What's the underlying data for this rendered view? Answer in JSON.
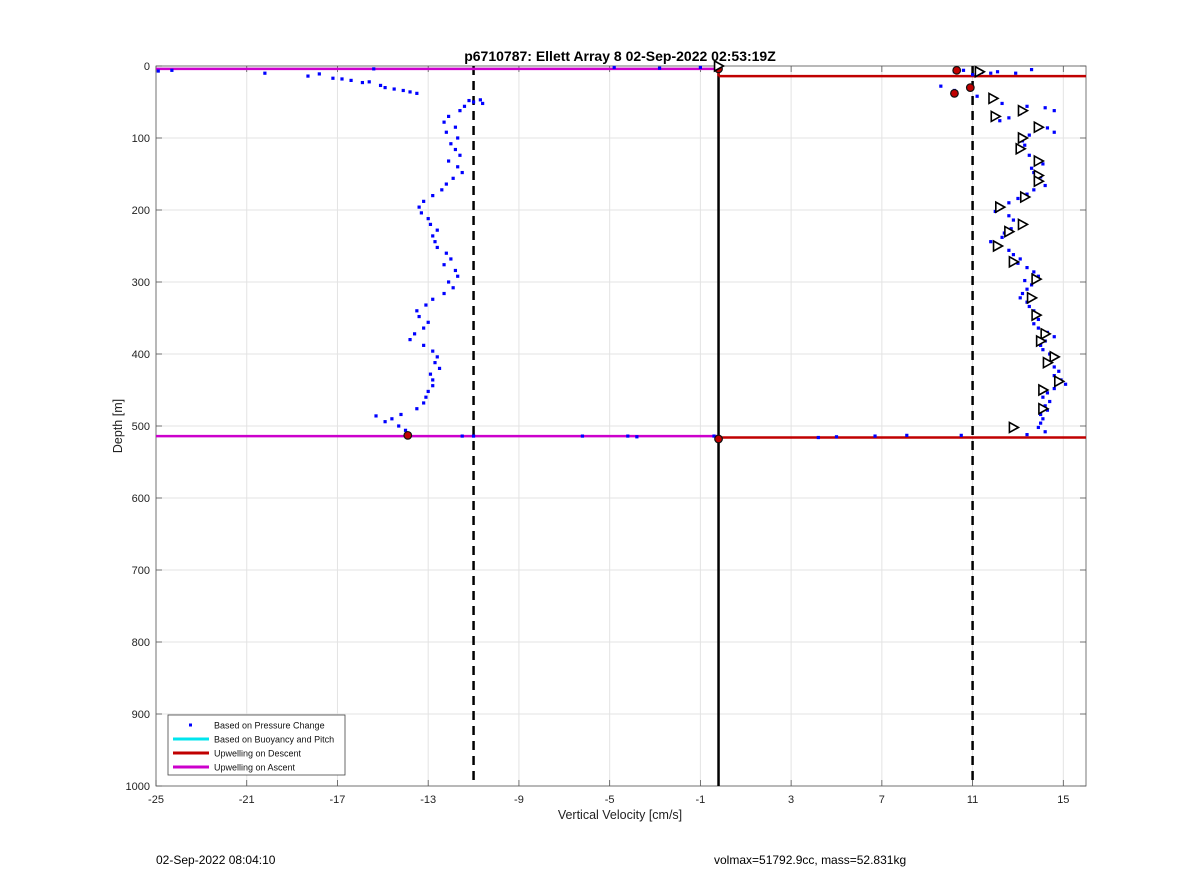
{
  "chart_data": {
    "type": "scatter",
    "title": "p6710787: Ellett Array 8 02-Sep-2022 02:53:19Z",
    "xlabel": "Vertical Velocity [cm/s]",
    "ylabel": "Depth [m]",
    "xlim": [
      -25,
      16
    ],
    "ylim": [
      0,
      1000
    ],
    "y_reversed": true,
    "grid": true,
    "xticks": [
      -25,
      -21,
      -17,
      -13,
      -9,
      -5,
      -1,
      3,
      7,
      11,
      15
    ],
    "yticks": [
      0,
      100,
      200,
      300,
      400,
      500,
      600,
      700,
      800,
      900,
      1000
    ],
    "legend_position": "bottom-left",
    "series": [
      {
        "name": "Based on Pressure Change",
        "kind": "points",
        "color": "#0000ff",
        "points": [
          [
            -24.9,
            7
          ],
          [
            -24.3,
            6
          ],
          [
            -20.2,
            10
          ],
          [
            -18.3,
            14
          ],
          [
            -17.8,
            11
          ],
          [
            -17.2,
            17
          ],
          [
            -16.8,
            18
          ],
          [
            -16.4,
            20
          ],
          [
            -15.9,
            23
          ],
          [
            -15.6,
            22
          ],
          [
            -15.1,
            27
          ],
          [
            -14.9,
            30
          ],
          [
            -14.5,
            32
          ],
          [
            -14.1,
            34
          ],
          [
            -13.8,
            36
          ],
          [
            -13.5,
            38
          ],
          [
            -15.4,
            4
          ],
          [
            -4.8,
            2
          ],
          [
            -2.8,
            3
          ],
          [
            -1.0,
            2
          ],
          [
            -11.2,
            48
          ],
          [
            -11.0,
            50
          ],
          [
            -10.7,
            47
          ],
          [
            -10.6,
            52
          ],
          [
            -11.4,
            56
          ],
          [
            -11.6,
            62
          ],
          [
            -12.1,
            70
          ],
          [
            -12.3,
            78
          ],
          [
            -11.8,
            85
          ],
          [
            -12.2,
            92
          ],
          [
            -11.7,
            100
          ],
          [
            -12.0,
            108
          ],
          [
            -11.8,
            116
          ],
          [
            -11.6,
            124
          ],
          [
            -12.1,
            132
          ],
          [
            -11.7,
            140
          ],
          [
            -11.5,
            148
          ],
          [
            -11.9,
            156
          ],
          [
            -12.2,
            164
          ],
          [
            -12.4,
            172
          ],
          [
            -12.8,
            180
          ],
          [
            -13.2,
            188
          ],
          [
            -13.4,
            196
          ],
          [
            -13.3,
            204
          ],
          [
            -13.0,
            212
          ],
          [
            -12.9,
            220
          ],
          [
            -12.6,
            228
          ],
          [
            -12.8,
            236
          ],
          [
            -12.7,
            244
          ],
          [
            -12.6,
            252
          ],
          [
            -12.2,
            260
          ],
          [
            -12.0,
            268
          ],
          [
            -12.3,
            276
          ],
          [
            -11.8,
            284
          ],
          [
            -11.7,
            292
          ],
          [
            -12.1,
            300
          ],
          [
            -11.9,
            308
          ],
          [
            -12.3,
            316
          ],
          [
            -12.8,
            324
          ],
          [
            -13.1,
            332
          ],
          [
            -13.5,
            340
          ],
          [
            -13.4,
            348
          ],
          [
            -13.0,
            356
          ],
          [
            -13.2,
            364
          ],
          [
            -13.6,
            372
          ],
          [
            -13.8,
            380
          ],
          [
            -13.2,
            388
          ],
          [
            -12.8,
            396
          ],
          [
            -12.6,
            404
          ],
          [
            -12.7,
            412
          ],
          [
            -12.5,
            420
          ],
          [
            -12.9,
            428
          ],
          [
            -12.8,
            436
          ],
          [
            -12.8,
            444
          ],
          [
            -13.0,
            452
          ],
          [
            -13.1,
            460
          ],
          [
            -13.2,
            468
          ],
          [
            -13.5,
            476
          ],
          [
            -14.2,
            484
          ],
          [
            -14.6,
            490
          ],
          [
            -15.3,
            486
          ],
          [
            -14.9,
            494
          ],
          [
            -14.3,
            500
          ],
          [
            -14.0,
            506
          ],
          [
            -13.9,
            512
          ],
          [
            -11.5,
            514
          ],
          [
            -11.0,
            514
          ],
          [
            -6.2,
            514
          ],
          [
            -4.2,
            514
          ],
          [
            -3.8,
            515
          ],
          [
            -0.4,
            514
          ],
          [
            4.2,
            516
          ],
          [
            5.0,
            515
          ],
          [
            6.7,
            514
          ],
          [
            8.1,
            513
          ],
          [
            10.5,
            513
          ],
          [
            10.2,
            8
          ],
          [
            10.6,
            6
          ],
          [
            11.0,
            12
          ],
          [
            11.4,
            9
          ],
          [
            11.8,
            10
          ],
          [
            12.1,
            8
          ],
          [
            12.9,
            10
          ],
          [
            13.6,
            5
          ],
          [
            9.6,
            28
          ],
          [
            10.2,
            34
          ],
          [
            11.2,
            42
          ],
          [
            11.8,
            46
          ],
          [
            12.3,
            52
          ],
          [
            13.4,
            56
          ],
          [
            14.2,
            58
          ],
          [
            14.6,
            62
          ],
          [
            13.1,
            66
          ],
          [
            12.6,
            72
          ],
          [
            12.2,
            76
          ],
          [
            13.8,
            82
          ],
          [
            14.3,
            86
          ],
          [
            14.6,
            92
          ],
          [
            13.5,
            96
          ],
          [
            13.2,
            104
          ],
          [
            13.3,
            110
          ],
          [
            13.0,
            116
          ],
          [
            13.5,
            124
          ],
          [
            13.9,
            130
          ],
          [
            14.1,
            136
          ],
          [
            13.6,
            142
          ],
          [
            13.7,
            148
          ],
          [
            14.0,
            154
          ],
          [
            13.8,
            160
          ],
          [
            14.2,
            166
          ],
          [
            13.7,
            172
          ],
          [
            13.4,
            178
          ],
          [
            13.0,
            184
          ],
          [
            12.6,
            190
          ],
          [
            12.2,
            196
          ],
          [
            12.0,
            202
          ],
          [
            12.6,
            208
          ],
          [
            12.8,
            214
          ],
          [
            13.2,
            220
          ],
          [
            12.7,
            226
          ],
          [
            12.4,
            232
          ],
          [
            12.3,
            238
          ],
          [
            11.8,
            244
          ],
          [
            12.0,
            250
          ],
          [
            12.6,
            256
          ],
          [
            12.8,
            262
          ],
          [
            13.1,
            268
          ],
          [
            13.0,
            274
          ],
          [
            13.4,
            280
          ],
          [
            13.7,
            286
          ],
          [
            13.9,
            292
          ],
          [
            13.3,
            298
          ],
          [
            13.6,
            304
          ],
          [
            13.4,
            310
          ],
          [
            13.2,
            316
          ],
          [
            13.1,
            322
          ],
          [
            13.4,
            328
          ],
          [
            13.5,
            334
          ],
          [
            13.7,
            340
          ],
          [
            13.8,
            346
          ],
          [
            13.9,
            352
          ],
          [
            13.7,
            358
          ],
          [
            13.9,
            364
          ],
          [
            14.3,
            370
          ],
          [
            14.6,
            376
          ],
          [
            14.2,
            382
          ],
          [
            14.0,
            388
          ],
          [
            14.1,
            394
          ],
          [
            14.4,
            400
          ],
          [
            14.5,
            406
          ],
          [
            14.3,
            412
          ],
          [
            14.6,
            418
          ],
          [
            14.8,
            424
          ],
          [
            14.6,
            430
          ],
          [
            14.9,
            436
          ],
          [
            15.1,
            442
          ],
          [
            14.6,
            448
          ],
          [
            14.3,
            454
          ],
          [
            14.1,
            460
          ],
          [
            14.4,
            466
          ],
          [
            14.2,
            472
          ],
          [
            14.3,
            478
          ],
          [
            14.0,
            484
          ],
          [
            14.1,
            490
          ],
          [
            14.0,
            496
          ],
          [
            13.9,
            502
          ],
          [
            14.2,
            508
          ],
          [
            13.4,
            512
          ]
        ]
      },
      {
        "name": "Based on Buoyancy and Pitch",
        "kind": "line",
        "color": "#00e5ee",
        "points": []
      },
      {
        "name": "Upwelling on Descent",
        "kind": "line",
        "color": "#c00000",
        "segments": [
          {
            "x": [
              -0.2,
              16
            ],
            "depth": 14
          },
          {
            "x": [
              -0.2,
              16
            ],
            "depth": 516
          },
          {
            "x": [
              -0.2,
              -0.2
            ],
            "depth": [
              0,
              14
            ]
          }
        ]
      },
      {
        "name": "Upwelling on Ascent",
        "kind": "line",
        "color": "#cc00cc",
        "segments": [
          {
            "x": [
              -25,
              -0.2
            ],
            "depth": 4
          },
          {
            "x": [
              -25,
              -0.2
            ],
            "depth": 514
          }
        ]
      }
    ],
    "markers": {
      "triangles": [
        [
          -0.2,
          0
        ],
        [
          11.3,
          8
        ],
        [
          11.9,
          45
        ],
        [
          12.0,
          70
        ],
        [
          13.2,
          62
        ],
        [
          13.9,
          85
        ],
        [
          13.2,
          100
        ],
        [
          13.1,
          115
        ],
        [
          13.9,
          132
        ],
        [
          13.9,
          152
        ],
        [
          13.9,
          160
        ],
        [
          13.3,
          182
        ],
        [
          12.2,
          196
        ],
        [
          13.2,
          220
        ],
        [
          12.6,
          230
        ],
        [
          12.1,
          250
        ],
        [
          12.8,
          272
        ],
        [
          13.8,
          296
        ],
        [
          13.6,
          322
        ],
        [
          13.8,
          346
        ],
        [
          14.2,
          372
        ],
        [
          14.0,
          382
        ],
        [
          14.6,
          404
        ],
        [
          14.3,
          412
        ],
        [
          14.8,
          438
        ],
        [
          14.1,
          450
        ],
        [
          14.1,
          476
        ],
        [
          12.8,
          502
        ]
      ],
      "red_circles": [
        [
          10.3,
          6
        ],
        [
          10.9,
          30
        ],
        [
          10.2,
          38
        ],
        [
          -13.9,
          513
        ],
        [
          -0.2,
          518
        ],
        [
          -0.2,
          4
        ]
      ]
    },
    "vlines": [
      {
        "x": -11,
        "style": "dashed",
        "color": "#000000"
      },
      {
        "x": 11,
        "style": "dashed",
        "color": "#000000"
      },
      {
        "x": -0.2,
        "style": "solid",
        "color": "#000000"
      }
    ]
  },
  "footer": {
    "left": "02-Sep-2022 08:04:10",
    "right": "volmax=51792.9cc, mass=52.831kg"
  }
}
